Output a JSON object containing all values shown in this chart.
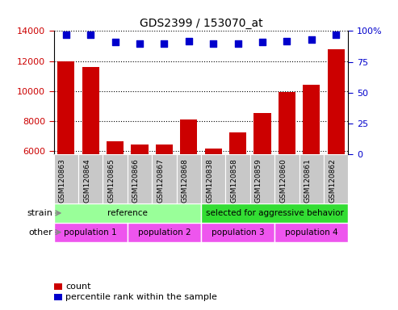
{
  "title": "GDS2399 / 153070_at",
  "samples": [
    "GSM120863",
    "GSM120864",
    "GSM120865",
    "GSM120866",
    "GSM120867",
    "GSM120868",
    "GSM120838",
    "GSM120858",
    "GSM120859",
    "GSM120860",
    "GSM120861",
    "GSM120862"
  ],
  "counts": [
    12000,
    11600,
    6650,
    6450,
    6450,
    8100,
    6150,
    7250,
    8550,
    9950,
    10400,
    12800
  ],
  "percentile_ranks": [
    97,
    97,
    91,
    90,
    90,
    92,
    90,
    90,
    91,
    92,
    93,
    97
  ],
  "ylim_left": [
    5800,
    14000
  ],
  "ylim_right": [
    0,
    100
  ],
  "yticks_left": [
    6000,
    8000,
    10000,
    12000,
    14000
  ],
  "yticks_right": [
    0,
    25,
    50,
    75,
    100
  ],
  "bar_color": "#cc0000",
  "dot_color": "#0000cc",
  "strain_row": [
    {
      "label": "reference",
      "start": 0,
      "end": 6,
      "color": "#99ff99"
    },
    {
      "label": "selected for aggressive behavior",
      "start": 6,
      "end": 12,
      "color": "#33dd33"
    }
  ],
  "other_row": [
    {
      "label": "population 1",
      "start": 0,
      "end": 3,
      "color": "#ee55ee"
    },
    {
      "label": "population 2",
      "start": 3,
      "end": 6,
      "color": "#ee55ee"
    },
    {
      "label": "population 3",
      "start": 6,
      "end": 9,
      "color": "#ee55ee"
    },
    {
      "label": "population 4",
      "start": 9,
      "end": 12,
      "color": "#ee55ee"
    }
  ],
  "strain_label": "strain",
  "other_label": "other",
  "legend_count_label": "count",
  "legend_pct_label": "percentile rank within the sample",
  "background_color": "#ffffff",
  "plot_bg_color": "#ffffff",
  "tick_color_left": "#cc0000",
  "tick_color_right": "#0000cc",
  "xlabel_bg": "#c8c8c8",
  "right_axis_labels": [
    "0",
    "25",
    "50",
    "75",
    "100%"
  ]
}
